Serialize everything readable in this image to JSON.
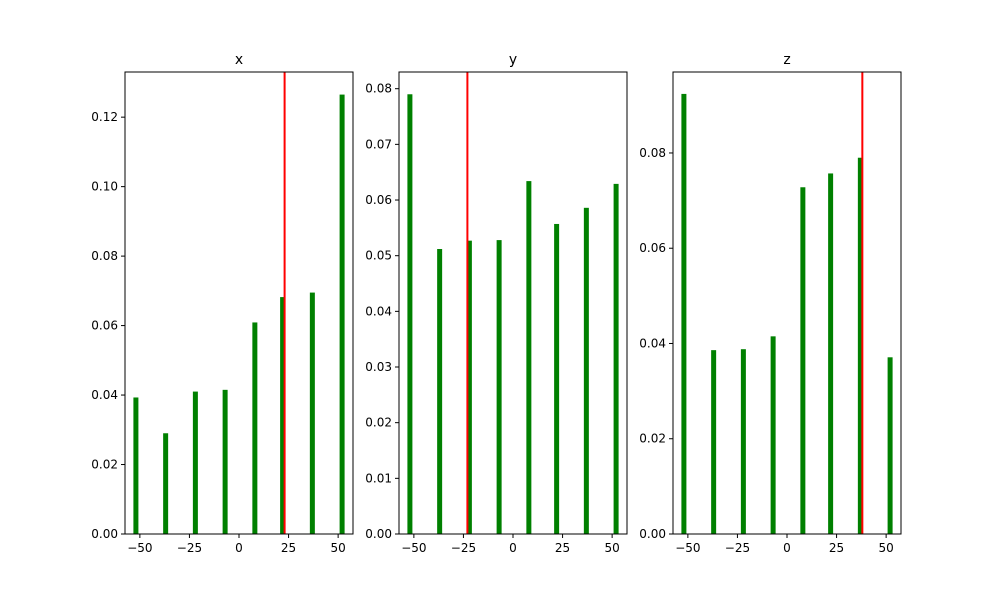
{
  "chart_data": [
    {
      "type": "bar",
      "title": "x",
      "x": [
        -52,
        -37,
        -22,
        -7,
        8,
        22,
        37,
        52
      ],
      "values": [
        0.0393,
        0.029,
        0.041,
        0.0415,
        0.0609,
        0.0682,
        0.0695,
        0.1265
      ],
      "bar_color": "#008000",
      "marker": {
        "x": 23,
        "color": "#ff0000"
      },
      "xlim": [
        -57.5,
        57.5
      ],
      "ylim": [
        0,
        0.133
      ],
      "xticks": [
        -50,
        -25,
        0,
        25,
        50
      ],
      "xtick_labels": [
        "−50",
        "−25",
        "0",
        "25",
        "50"
      ],
      "yticks": [
        0,
        0.02,
        0.04,
        0.06,
        0.08,
        0.1,
        0.12
      ],
      "ytick_labels": [
        "0.00",
        "0.02",
        "0.04",
        "0.06",
        "0.08",
        "0.10",
        "0.12"
      ],
      "grid": false
    },
    {
      "type": "bar",
      "title": "y",
      "x": [
        -52,
        -37,
        -22,
        -7,
        8,
        22,
        37,
        52
      ],
      "values": [
        0.079,
        0.0512,
        0.0527,
        0.0528,
        0.0634,
        0.0557,
        0.0586,
        0.0629
      ],
      "bar_color": "#008000",
      "marker": {
        "x": -23,
        "color": "#ff0000"
      },
      "xlim": [
        -57.5,
        57.5
      ],
      "ylim": [
        0,
        0.083
      ],
      "xticks": [
        -50,
        -25,
        0,
        25,
        50
      ],
      "xtick_labels": [
        "−50",
        "−25",
        "0",
        "25",
        "50"
      ],
      "yticks": [
        0,
        0.01,
        0.02,
        0.03,
        0.04,
        0.05,
        0.06,
        0.07,
        0.08
      ],
      "ytick_labels": [
        "0.00",
        "0.01",
        "0.02",
        "0.03",
        "0.04",
        "0.05",
        "0.06",
        "0.07",
        "0.08"
      ],
      "grid": false
    },
    {
      "type": "bar",
      "title": "z",
      "x": [
        -52,
        -37,
        -22,
        -7,
        8,
        22,
        37,
        52
      ],
      "values": [
        0.0924,
        0.0386,
        0.0388,
        0.0415,
        0.0728,
        0.0757,
        0.079,
        0.0371
      ],
      "bar_color": "#008000",
      "marker": {
        "x": 38,
        "color": "#ff0000"
      },
      "xlim": [
        -57.5,
        57.5
      ],
      "ylim": [
        0,
        0.097
      ],
      "xticks": [
        -50,
        -25,
        0,
        25,
        50
      ],
      "xtick_labels": [
        "−50",
        "−25",
        "0",
        "25",
        "50"
      ],
      "yticks": [
        0,
        0.02,
        0.04,
        0.06,
        0.08
      ],
      "ytick_labels": [
        "0.00",
        "0.02",
        "0.04",
        "0.06",
        "0.08"
      ],
      "grid": false
    }
  ]
}
